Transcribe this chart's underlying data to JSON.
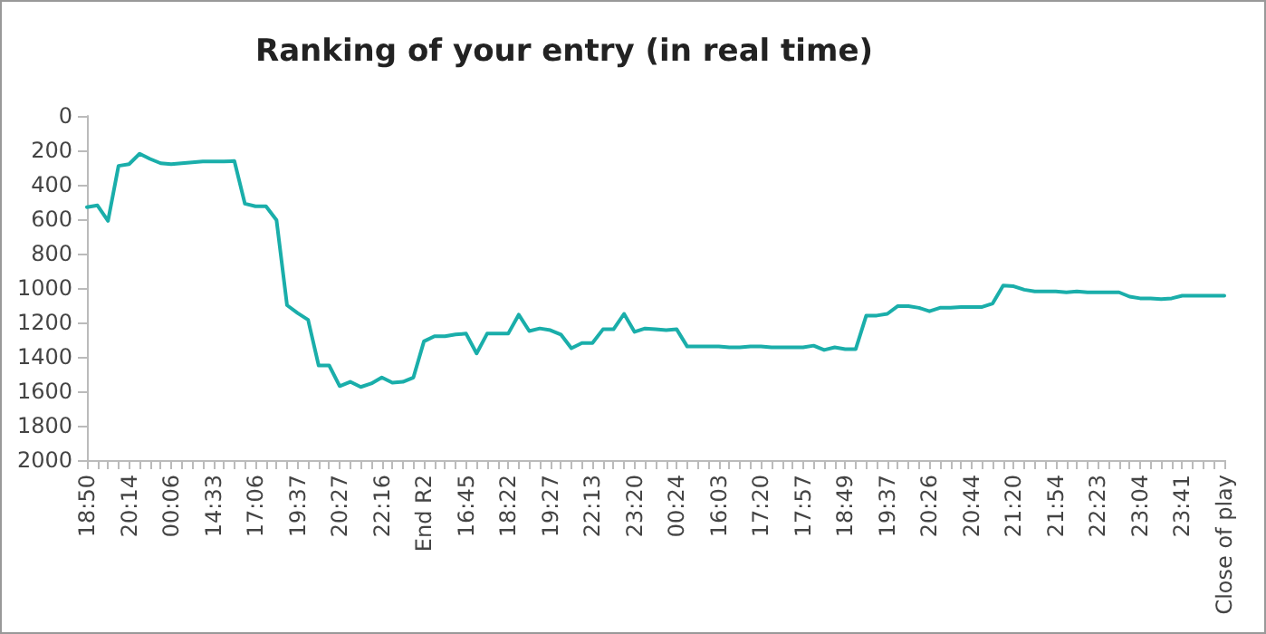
{
  "chart_data": {
    "type": "line",
    "title": "Ranking of your entry (in real time)",
    "categories": [
      "18:50",
      null,
      null,
      null,
      "20:14",
      null,
      null,
      null,
      "00:06",
      null,
      null,
      null,
      "14:33",
      null,
      null,
      null,
      "17:06",
      null,
      null,
      null,
      "19:37",
      null,
      null,
      null,
      "20:27",
      null,
      null,
      null,
      "22:16",
      null,
      null,
      null,
      "End R2",
      null,
      null,
      null,
      "16:45",
      null,
      null,
      null,
      "18:22",
      null,
      null,
      null,
      "19:27",
      null,
      null,
      null,
      "22:13",
      null,
      null,
      null,
      "23:20",
      null,
      null,
      null,
      "00:24",
      null,
      null,
      null,
      "16:03",
      null,
      null,
      null,
      "17:20",
      null,
      null,
      null,
      "17:57",
      null,
      null,
      null,
      "18:49",
      null,
      null,
      null,
      "19:37",
      null,
      null,
      null,
      "20:26",
      null,
      null,
      null,
      "20:44",
      null,
      null,
      null,
      "21:20",
      null,
      null,
      null,
      "21:54",
      null,
      null,
      null,
      "22:23",
      null,
      null,
      null,
      "23:04",
      null,
      null,
      null,
      "23:41",
      null,
      null,
      null,
      "Close of play"
    ],
    "series": [
      {
        "color": "#1aaeaa",
        "values": [
          530,
          520,
          610,
          290,
          280,
          220,
          250,
          275,
          280,
          275,
          270,
          265,
          265,
          265,
          262,
          510,
          525,
          525,
          605,
          1100,
          1145,
          1185,
          1450,
          1450,
          1570,
          1545,
          1575,
          1555,
          1520,
          1550,
          1545,
          1520,
          1310,
          1280,
          1280,
          1270,
          1265,
          1380,
          1265,
          1265,
          1265,
          1155,
          1250,
          1235,
          1245,
          1270,
          1350,
          1320,
          1320,
          1240,
          1240,
          1150,
          1255,
          1235,
          1240,
          1245,
          1240,
          1340,
          1340,
          1340,
          1340,
          1345,
          1345,
          1340,
          1340,
          1345,
          1345,
          1345,
          1345,
          1335,
          1360,
          1345,
          1355,
          1355,
          1160,
          1160,
          1150,
          1105,
          1105,
          1115,
          1135,
          1115,
          1115,
          1110,
          1110,
          1110,
          1090,
          985,
          990,
          1010,
          1020,
          1020,
          1020,
          1025,
          1020,
          1025,
          1025,
          1025,
          1025,
          1050,
          1060,
          1060,
          1065,
          1060,
          1045,
          1045,
          1045,
          1045,
          1045
        ]
      }
    ],
    "ylim": [
      2000,
      0
    ],
    "yticks": [
      0,
      200,
      400,
      600,
      800,
      1000,
      1200,
      1400,
      1600,
      1800,
      2000
    ],
    "grid": false,
    "marker": "none",
    "line_style": "solid"
  }
}
